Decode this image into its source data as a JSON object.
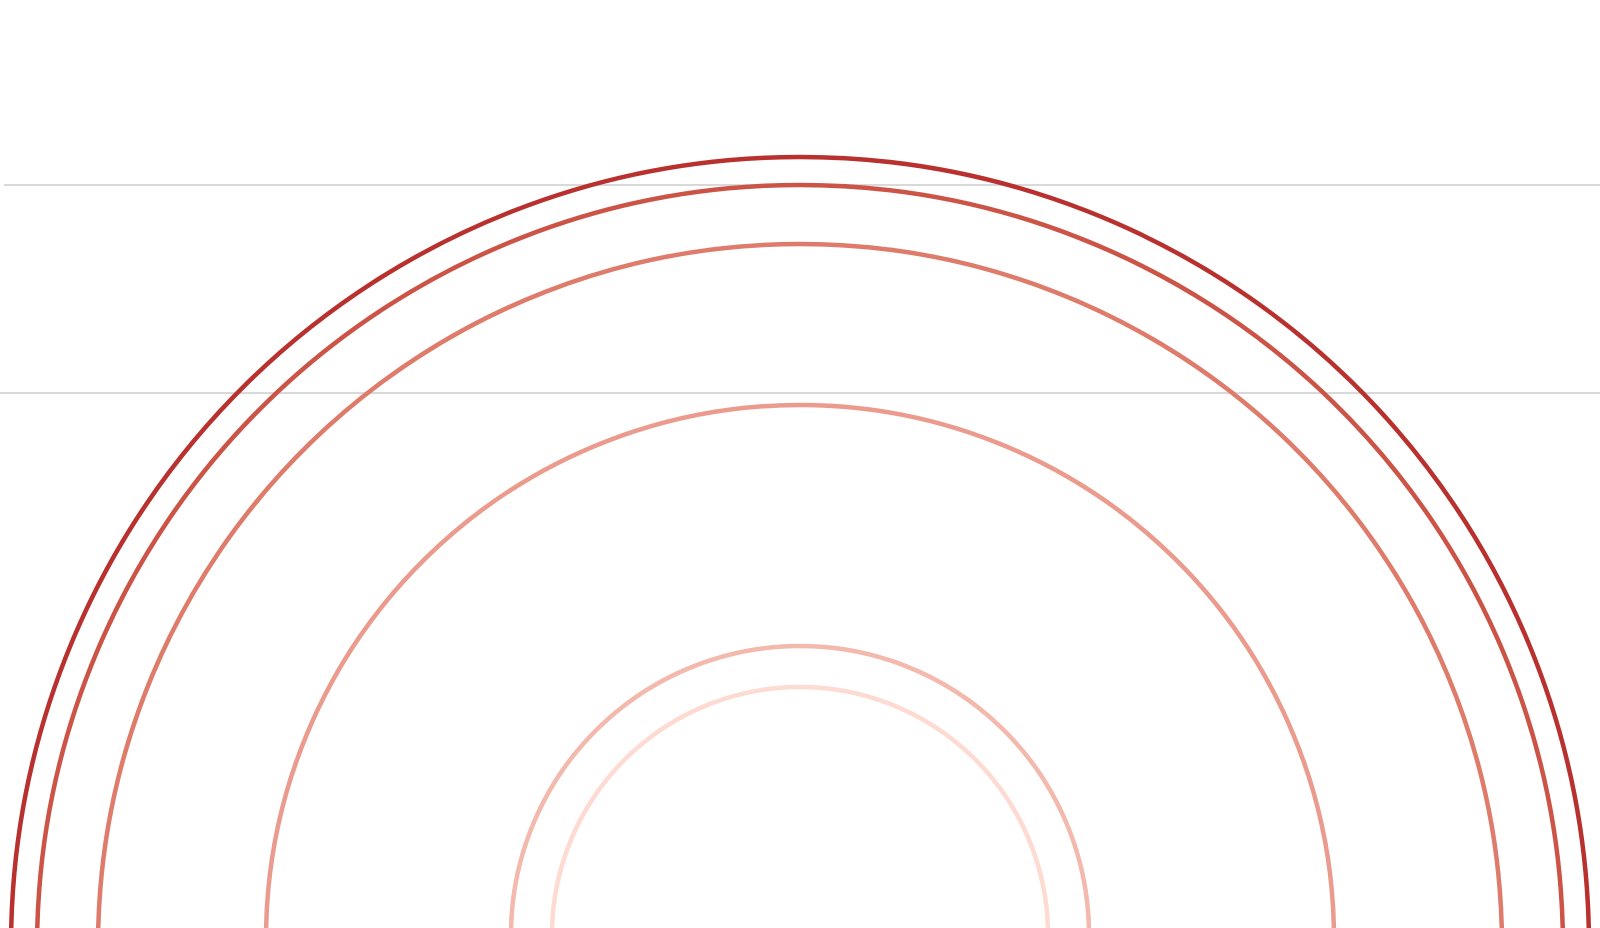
{
  "background_color": "#ffffff",
  "guide_line_color": "#d9d9d9",
  "arcs": [
    {
      "name": "arc-outermost",
      "color": "#b8312f"
    },
    {
      "name": "arc-2",
      "color": "#cc5447"
    },
    {
      "name": "arc-3",
      "color": "#de7b6b"
    },
    {
      "name": "arc-4",
      "color": "#eb9b8d"
    },
    {
      "name": "arc-5",
      "color": "#f3b9ad"
    },
    {
      "name": "arc-innermost",
      "color": "#fddbd2"
    }
  ]
}
